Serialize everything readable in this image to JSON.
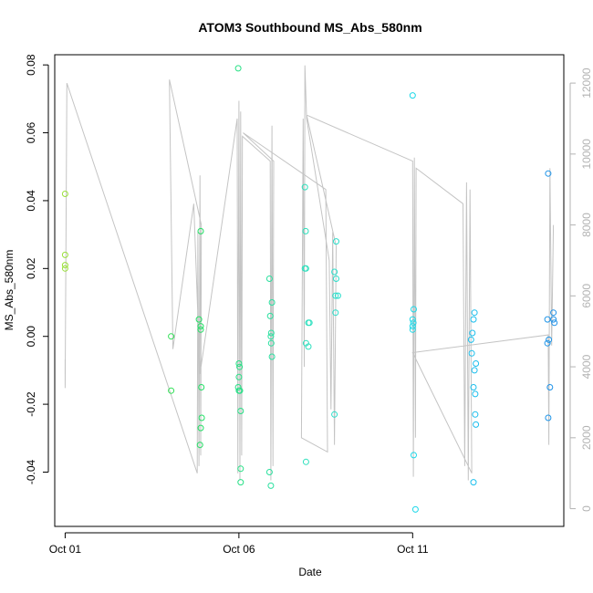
{
  "chart_data": {
    "type": "scatter",
    "title": "ATOM3 Southbound MS_Abs_580nm",
    "xlabel": "Date",
    "ylabel": "MS_Abs_580nm",
    "x_ticks": [
      "Oct 01",
      "Oct 06",
      "Oct 11"
    ],
    "y_ticks": [
      "-0.04",
      "-0.02",
      "0.00",
      "0.02",
      "0.04",
      "0.06",
      "0.08"
    ],
    "y2_ticks": [
      "0",
      "2000",
      "4000",
      "6000",
      "8000",
      "10000",
      "12000"
    ],
    "xlim": [
      -0.3,
      14.35
    ],
    "ylim": [
      -0.056,
      0.083
    ],
    "y2lim": [
      -500,
      12800
    ],
    "grid": false,
    "point_color_scale": [
      "#9ae03a",
      "#21e05a",
      "#2ee0c0",
      "#19d6f0",
      "#1e90e8"
    ],
    "track_color": "#c4c4c4",
    "points": [
      {
        "x": 0.0,
        "y": 0.042
      },
      {
        "x": 0.0,
        "y": 0.024
      },
      {
        "x": 0.0,
        "y": 0.021
      },
      {
        "x": 0.0,
        "y": 0.02
      },
      {
        "x": 3.05,
        "y": 0.0
      },
      {
        "x": 3.05,
        "y": -0.016
      },
      {
        "x": 3.85,
        "y": 0.005
      },
      {
        "x": 3.9,
        "y": 0.031
      },
      {
        "x": 3.9,
        "y": 0.003
      },
      {
        "x": 3.9,
        "y": 0.002
      },
      {
        "x": 3.92,
        "y": -0.015
      },
      {
        "x": 3.93,
        "y": -0.024
      },
      {
        "x": 3.9,
        "y": -0.027
      },
      {
        "x": 3.88,
        "y": -0.032
      },
      {
        "x": 4.98,
        "y": 0.079
      },
      {
        "x": 5.0,
        "y": -0.008
      },
      {
        "x": 5.02,
        "y": -0.009
      },
      {
        "x": 5.0,
        "y": -0.012
      },
      {
        "x": 4.98,
        "y": -0.015
      },
      {
        "x": 5.0,
        "y": -0.016
      },
      {
        "x": 5.03,
        "y": -0.016
      },
      {
        "x": 5.05,
        "y": -0.022
      },
      {
        "x": 5.05,
        "y": -0.039
      },
      {
        "x": 5.05,
        "y": -0.043
      },
      {
        "x": 5.88,
        "y": 0.017
      },
      {
        "x": 5.95,
        "y": 0.01
      },
      {
        "x": 5.9,
        "y": 0.006
      },
      {
        "x": 5.93,
        "y": 0.001
      },
      {
        "x": 5.92,
        "y": 0.0
      },
      {
        "x": 5.93,
        "y": -0.002
      },
      {
        "x": 5.95,
        "y": -0.006
      },
      {
        "x": 5.88,
        "y": -0.04
      },
      {
        "x": 5.92,
        "y": -0.044
      },
      {
        "x": 6.9,
        "y": 0.044
      },
      {
        "x": 6.92,
        "y": 0.031
      },
      {
        "x": 6.9,
        "y": 0.02
      },
      {
        "x": 6.93,
        "y": 0.02
      },
      {
        "x": 7.0,
        "y": 0.004
      },
      {
        "x": 7.03,
        "y": 0.004
      },
      {
        "x": 6.93,
        "y": -0.002
      },
      {
        "x": 7.0,
        "y": -0.003
      },
      {
        "x": 6.93,
        "y": -0.037
      },
      {
        "x": 7.8,
        "y": 0.028
      },
      {
        "x": 7.75,
        "y": 0.019
      },
      {
        "x": 7.8,
        "y": 0.017
      },
      {
        "x": 7.78,
        "y": 0.012
      },
      {
        "x": 7.85,
        "y": 0.012
      },
      {
        "x": 7.78,
        "y": 0.007
      },
      {
        "x": 7.75,
        "y": -0.023
      },
      {
        "x": 10.0,
        "y": 0.071
      },
      {
        "x": 10.03,
        "y": 0.008
      },
      {
        "x": 10.0,
        "y": 0.005
      },
      {
        "x": 10.02,
        "y": 0.004
      },
      {
        "x": 10.0,
        "y": 0.003
      },
      {
        "x": 10.0,
        "y": 0.002
      },
      {
        "x": 10.03,
        "y": -0.035
      },
      {
        "x": 10.08,
        "y": -0.051
      },
      {
        "x": 11.78,
        "y": 0.007
      },
      {
        "x": 11.75,
        "y": 0.005
      },
      {
        "x": 11.72,
        "y": 0.001
      },
      {
        "x": 11.68,
        "y": -0.001
      },
      {
        "x": 11.7,
        "y": -0.005
      },
      {
        "x": 11.82,
        "y": -0.008
      },
      {
        "x": 11.78,
        "y": -0.01
      },
      {
        "x": 11.75,
        "y": -0.015
      },
      {
        "x": 11.8,
        "y": -0.017
      },
      {
        "x": 11.8,
        "y": -0.023
      },
      {
        "x": 11.82,
        "y": -0.026
      },
      {
        "x": 11.75,
        "y": -0.043
      },
      {
        "x": 13.9,
        "y": 0.048
      },
      {
        "x": 14.05,
        "y": 0.007
      },
      {
        "x": 13.88,
        "y": 0.005
      },
      {
        "x": 14.05,
        "y": 0.005
      },
      {
        "x": 14.08,
        "y": 0.004
      },
      {
        "x": 13.92,
        "y": -0.001
      },
      {
        "x": 13.88,
        "y": -0.002
      },
      {
        "x": 13.95,
        "y": -0.015
      },
      {
        "x": 13.9,
        "y": -0.024
      }
    ],
    "track_y2": [
      [
        0.0,
        4200
      ],
      [
        0.0,
        3400
      ],
      [
        0.05,
        12000
      ],
      [
        3.8,
        1000
      ],
      [
        3.82,
        7800
      ],
      [
        3.85,
        1200
      ],
      [
        3.88,
        9400
      ],
      [
        3.9,
        1500
      ],
      [
        3.92,
        8000
      ],
      [
        3.0,
        12100
      ],
      [
        3.1,
        4500
      ],
      [
        3.7,
        8600
      ],
      [
        3.88,
        3800
      ],
      [
        4.95,
        11000
      ],
      [
        4.97,
        1000
      ],
      [
        5.0,
        11500
      ],
      [
        5.03,
        800
      ],
      [
        5.05,
        11200
      ],
      [
        5.08,
        1500
      ],
      [
        5.1,
        10500
      ],
      [
        5.9,
        9800
      ],
      [
        5.92,
        800
      ],
      [
        5.95,
        10800
      ],
      [
        5.98,
        1200
      ],
      [
        6.0,
        9800
      ],
      [
        5.12,
        10600
      ],
      [
        7.5,
        9000
      ],
      [
        7.55,
        1600
      ],
      [
        6.8,
        2000
      ],
      [
        6.85,
        11000
      ],
      [
        6.88,
        4000
      ],
      [
        6.9,
        12500
      ],
      [
        6.95,
        11000
      ],
      [
        7.6,
        7000
      ],
      [
        7.65,
        2800
      ],
      [
        7.7,
        7800
      ],
      [
        7.75,
        1800
      ],
      [
        7.8,
        7400
      ],
      [
        6.95,
        11100
      ],
      [
        10.0,
        9800
      ],
      [
        10.02,
        900
      ],
      [
        10.05,
        9900
      ],
      [
        10.08,
        2000
      ],
      [
        10.1,
        9600
      ],
      [
        11.45,
        8600
      ],
      [
        11.5,
        1200
      ],
      [
        11.55,
        9200
      ],
      [
        11.6,
        800
      ],
      [
        11.65,
        9000
      ],
      [
        11.7,
        1000
      ],
      [
        10.0,
        4400
      ],
      [
        13.9,
        4900
      ],
      [
        13.92,
        1800
      ],
      [
        13.95,
        9600
      ],
      [
        14.0,
        4600
      ],
      [
        14.05,
        8000
      ]
    ]
  }
}
